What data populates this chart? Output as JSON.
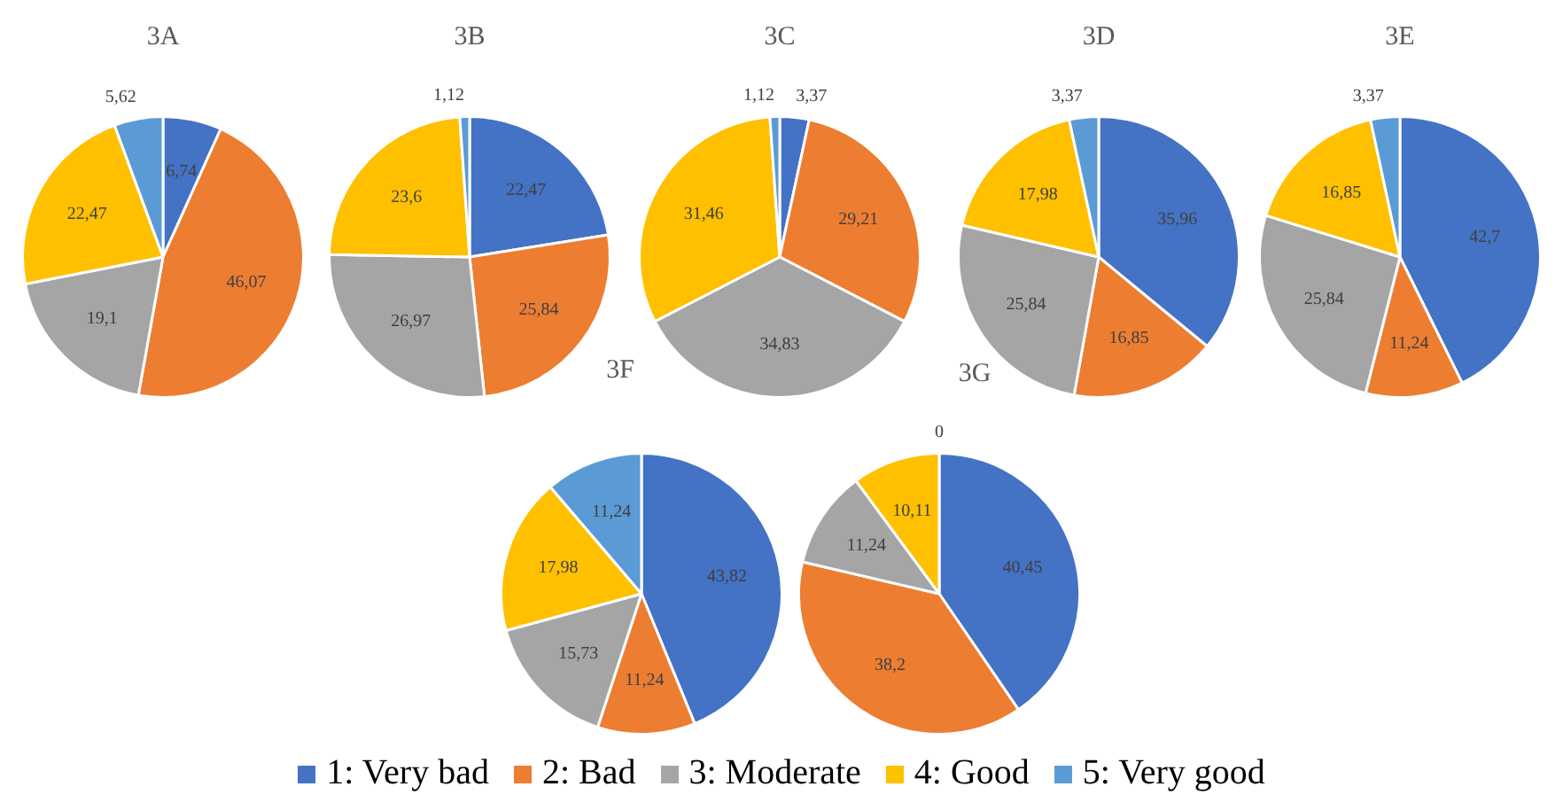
{
  "chart_data": [
    {
      "type": "pie",
      "title": "3A",
      "categories": [
        "1: Very bad",
        "2: Bad",
        "3: Moderate",
        "4: Good",
        "5: Very good"
      ],
      "values": [
        6.74,
        46.07,
        19.1,
        22.47,
        5.62
      ],
      "value_labels": [
        "6,74",
        "46,07",
        "19,1",
        "22,47",
        "5,62"
      ],
      "colors": [
        "#4472c4",
        "#ed7d31",
        "#a5a5a5",
        "#ffc000",
        "#5b9bd5"
      ],
      "legend": "bottom"
    },
    {
      "type": "pie",
      "title": "3B",
      "categories": [
        null,
        null,
        null,
        null,
        null
      ],
      "values": [
        22.47,
        25.84,
        26.97,
        23.6,
        1.12
      ],
      "value_labels": [
        "22,47",
        "25,84",
        "26,97",
        "23,6",
        "1,12"
      ],
      "colors": [
        "#4472c4",
        "#ed7d31",
        "#a5a5a5",
        "#ffc000",
        "#5b9bd5"
      ]
    },
    {
      "type": "pie",
      "title": "3C",
      "categories": [
        null,
        null,
        null,
        null,
        null
      ],
      "values": [
        3.37,
        29.21,
        34.83,
        31.46,
        1.12
      ],
      "value_labels": [
        "3,37",
        "29,21",
        "34,83",
        "31,46",
        "1,12"
      ],
      "colors": [
        "#4472c4",
        "#ed7d31",
        "#a5a5a5",
        "#ffc000",
        "#5b9bd5"
      ]
    },
    {
      "type": "pie",
      "title": "3D",
      "categories": [
        null,
        null,
        null,
        null,
        null
      ],
      "values": [
        35.96,
        16.85,
        25.84,
        17.98,
        3.37
      ],
      "value_labels": [
        "35,96",
        "16,85",
        "25,84",
        "17,98",
        "3,37"
      ],
      "colors": [
        "#4472c4",
        "#ed7d31",
        "#a5a5a5",
        "#ffc000",
        "#5b9bd5"
      ]
    },
    {
      "type": "pie",
      "title": "3E",
      "categories": [
        null,
        null,
        null,
        null,
        null
      ],
      "values": [
        42.7,
        11.24,
        25.84,
        16.85,
        3.37
      ],
      "value_labels": [
        "42,7",
        "11,24",
        "25,84",
        "16,85",
        "3,37"
      ],
      "colors": [
        "#4472c4",
        "#ed7d31",
        "#a5a5a5",
        "#ffc000",
        "#5b9bd5"
      ]
    },
    {
      "type": "pie",
      "title": "3F",
      "categories": [
        null,
        null,
        null,
        null,
        null
      ],
      "values": [
        43.82,
        11.24,
        15.73,
        17.98,
        11.24
      ],
      "value_labels": [
        "43,82",
        "11,24",
        "15,73",
        "17,98",
        "11,24"
      ],
      "colors": [
        "#4472c4",
        "#ed7d31",
        "#a5a5a5",
        "#ffc000",
        "#5b9bd5"
      ]
    },
    {
      "type": "pie",
      "title": "3G",
      "categories": [
        null,
        null,
        null,
        null,
        null
      ],
      "values": [
        40.45,
        38.2,
        11.24,
        10.11,
        0
      ],
      "value_labels": [
        "40,45",
        "38,2",
        "11,24",
        "10,11",
        "0"
      ],
      "colors": [
        "#4472c4",
        "#ed7d31",
        "#a5a5a5",
        "#ffc000",
        "#5b9bd5"
      ]
    }
  ]
}
